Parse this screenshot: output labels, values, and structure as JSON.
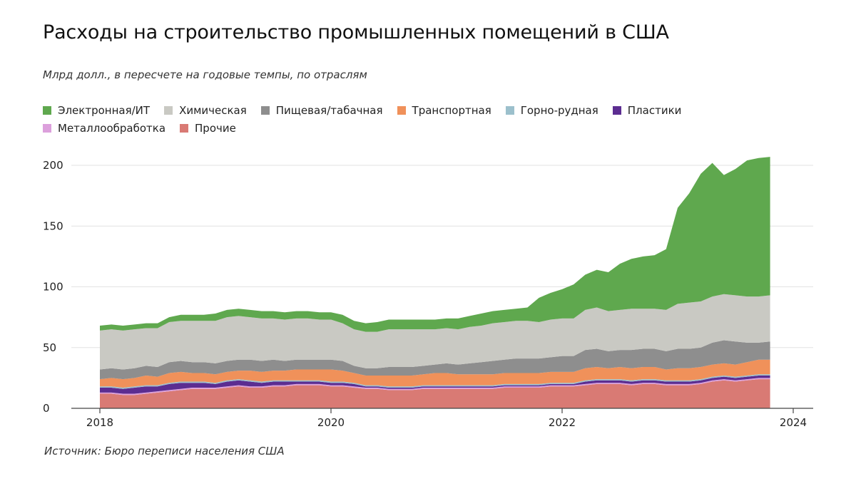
{
  "title": "Расходы на строительство промышленных помещений в США",
  "subtitle": "Млрд долл., в пересчете на годовые темпы, по отраслям",
  "source": "Источник: Бюро переписи населения США",
  "chart_data": {
    "type": "area",
    "stacked": true,
    "title": "Расходы на строительство промышленных помещений в США",
    "subtitle": "Млрд долл., в пересчете на годовые темпы, по отраслям",
    "xlabel": "",
    "ylabel": "",
    "xlim": [
      2018,
      2024
    ],
    "ylim": [
      0,
      200
    ],
    "y_ticks": [
      0,
      50,
      100,
      150,
      200
    ],
    "x_ticks": [
      2018,
      2020,
      2022,
      2024
    ],
    "grid": "horizontal",
    "legend_placement": "top-left",
    "x": [
      2018.0,
      2018.1,
      2018.2,
      2018.3,
      2018.4,
      2018.5,
      2018.6,
      2018.7,
      2018.8,
      2018.9,
      2019.0,
      2019.1,
      2019.2,
      2019.3,
      2019.4,
      2019.5,
      2019.6,
      2019.7,
      2019.8,
      2019.9,
      2020.0,
      2020.1,
      2020.2,
      2020.3,
      2020.4,
      2020.5,
      2020.6,
      2020.7,
      2020.8,
      2020.9,
      2021.0,
      2021.1,
      2021.2,
      2021.3,
      2021.4,
      2021.5,
      2021.6,
      2021.7,
      2021.8,
      2021.9,
      2022.0,
      2022.1,
      2022.2,
      2022.3,
      2022.4,
      2022.5,
      2022.6,
      2022.7,
      2022.8,
      2022.9,
      2023.0,
      2023.1,
      2023.2,
      2023.3,
      2023.4,
      2023.5,
      2023.6,
      2023.7,
      2023.8
    ],
    "series": [
      {
        "name": "Прочие",
        "color": "#d97a74",
        "values": [
          12,
          12,
          11,
          11,
          12,
          13,
          14,
          15,
          16,
          16,
          16,
          17,
          18,
          17,
          17,
          18,
          18,
          19,
          19,
          19,
          18,
          18,
          17,
          16,
          16,
          15,
          15,
          15,
          16,
          16,
          16,
          16,
          16,
          16,
          16,
          17,
          17,
          17,
          17,
          18,
          18,
          18,
          19,
          20,
          20,
          20,
          19,
          20,
          20,
          19,
          19,
          19,
          20,
          22,
          23,
          22,
          23,
          24,
          24
        ]
      },
      {
        "name": "Металлообработка",
        "color": "#dca0dc",
        "values": [
          1,
          1,
          1,
          1,
          1,
          1,
          1,
          1,
          1,
          1,
          1,
          1,
          1,
          1,
          1,
          1,
          1,
          1,
          1,
          1,
          1,
          1,
          1,
          1,
          1,
          1,
          1,
          1,
          1,
          1,
          1,
          1,
          1,
          1,
          1,
          1,
          1,
          1,
          1,
          1,
          1,
          1,
          1,
          1,
          1,
          1,
          1,
          1,
          1,
          1,
          1,
          1,
          1,
          1,
          1,
          1,
          1,
          1,
          1
        ]
      },
      {
        "name": "Пластики",
        "color": "#5c2d91",
        "values": [
          4,
          4,
          4,
          5,
          5,
          4,
          5,
          5,
          4,
          4,
          3,
          4,
          4,
          4,
          3,
          3,
          3,
          2,
          2,
          2,
          2,
          2,
          2,
          1,
          1,
          1,
          1,
          1,
          1,
          1,
          1,
          1,
          1,
          1,
          1,
          1,
          1,
          1,
          1,
          1,
          1,
          1,
          2,
          2,
          2,
          2,
          2,
          2,
          2,
          2,
          2,
          2,
          2,
          2,
          2,
          2,
          2,
          2,
          2
        ]
      },
      {
        "name": "Горно-рудная",
        "color": "#9cc0cc",
        "values": [
          1,
          1,
          1,
          1,
          1,
          1,
          1,
          1,
          1,
          1,
          1,
          1,
          1,
          1,
          1,
          1,
          1,
          1,
          1,
          1,
          1,
          1,
          1,
          1,
          1,
          1,
          1,
          1,
          1,
          1,
          1,
          1,
          1,
          1,
          1,
          1,
          1,
          1,
          1,
          1,
          1,
          1,
          1,
          1,
          1,
          1,
          1,
          1,
          1,
          1,
          1,
          1,
          1,
          1,
          1,
          1,
          1,
          1,
          1
        ]
      },
      {
        "name": "Транспортная",
        "color": "#f0915a",
        "values": [
          6,
          7,
          7,
          7,
          8,
          7,
          8,
          8,
          7,
          7,
          7,
          7,
          7,
          8,
          8,
          8,
          8,
          9,
          9,
          9,
          10,
          9,
          8,
          8,
          8,
          9,
          9,
          9,
          9,
          10,
          10,
          9,
          9,
          9,
          9,
          9,
          9,
          9,
          9,
          9,
          9,
          9,
          10,
          10,
          9,
          10,
          10,
          10,
          10,
          9,
          10,
          10,
          10,
          10,
          10,
          10,
          11,
          12,
          12
        ]
      },
      {
        "name": "Пищевая/табачная",
        "color": "#8e8e8e",
        "values": [
          8,
          8,
          8,
          8,
          8,
          8,
          9,
          9,
          9,
          9,
          9,
          9,
          9,
          9,
          9,
          9,
          8,
          8,
          8,
          8,
          8,
          8,
          6,
          6,
          6,
          7,
          7,
          7,
          7,
          7,
          8,
          8,
          9,
          10,
          11,
          11,
          12,
          12,
          12,
          12,
          13,
          13,
          15,
          15,
          14,
          14,
          15,
          15,
          15,
          15,
          16,
          16,
          16,
          18,
          19,
          19,
          16,
          14,
          15
        ]
      },
      {
        "name": "Химическая",
        "color": "#c9c9c3",
        "values": [
          32,
          32,
          32,
          32,
          31,
          32,
          33,
          33,
          34,
          34,
          35,
          36,
          36,
          35,
          35,
          34,
          34,
          34,
          34,
          33,
          33,
          31,
          30,
          30,
          30,
          31,
          31,
          31,
          30,
          29,
          29,
          29,
          30,
          30,
          31,
          31,
          31,
          31,
          30,
          31,
          31,
          31,
          33,
          34,
          33,
          33,
          34,
          33,
          33,
          34,
          37,
          38,
          38,
          38,
          38,
          38,
          38,
          38,
          38
        ]
      },
      {
        "name": "Электронная/ИТ",
        "color": "#5fa84e",
        "values": [
          4,
          4,
          4,
          4,
          4,
          4,
          4,
          5,
          5,
          5,
          6,
          6,
          6,
          6,
          6,
          6,
          6,
          6,
          6,
          6,
          6,
          7,
          7,
          7,
          8,
          8,
          8,
          8,
          8,
          8,
          8,
          9,
          9,
          10,
          10,
          10,
          10,
          11,
          20,
          22,
          24,
          28,
          29,
          31,
          32,
          38,
          41,
          43,
          44,
          50,
          79,
          90,
          105,
          110,
          98,
          104,
          112,
          114,
          114
        ]
      }
    ]
  }
}
